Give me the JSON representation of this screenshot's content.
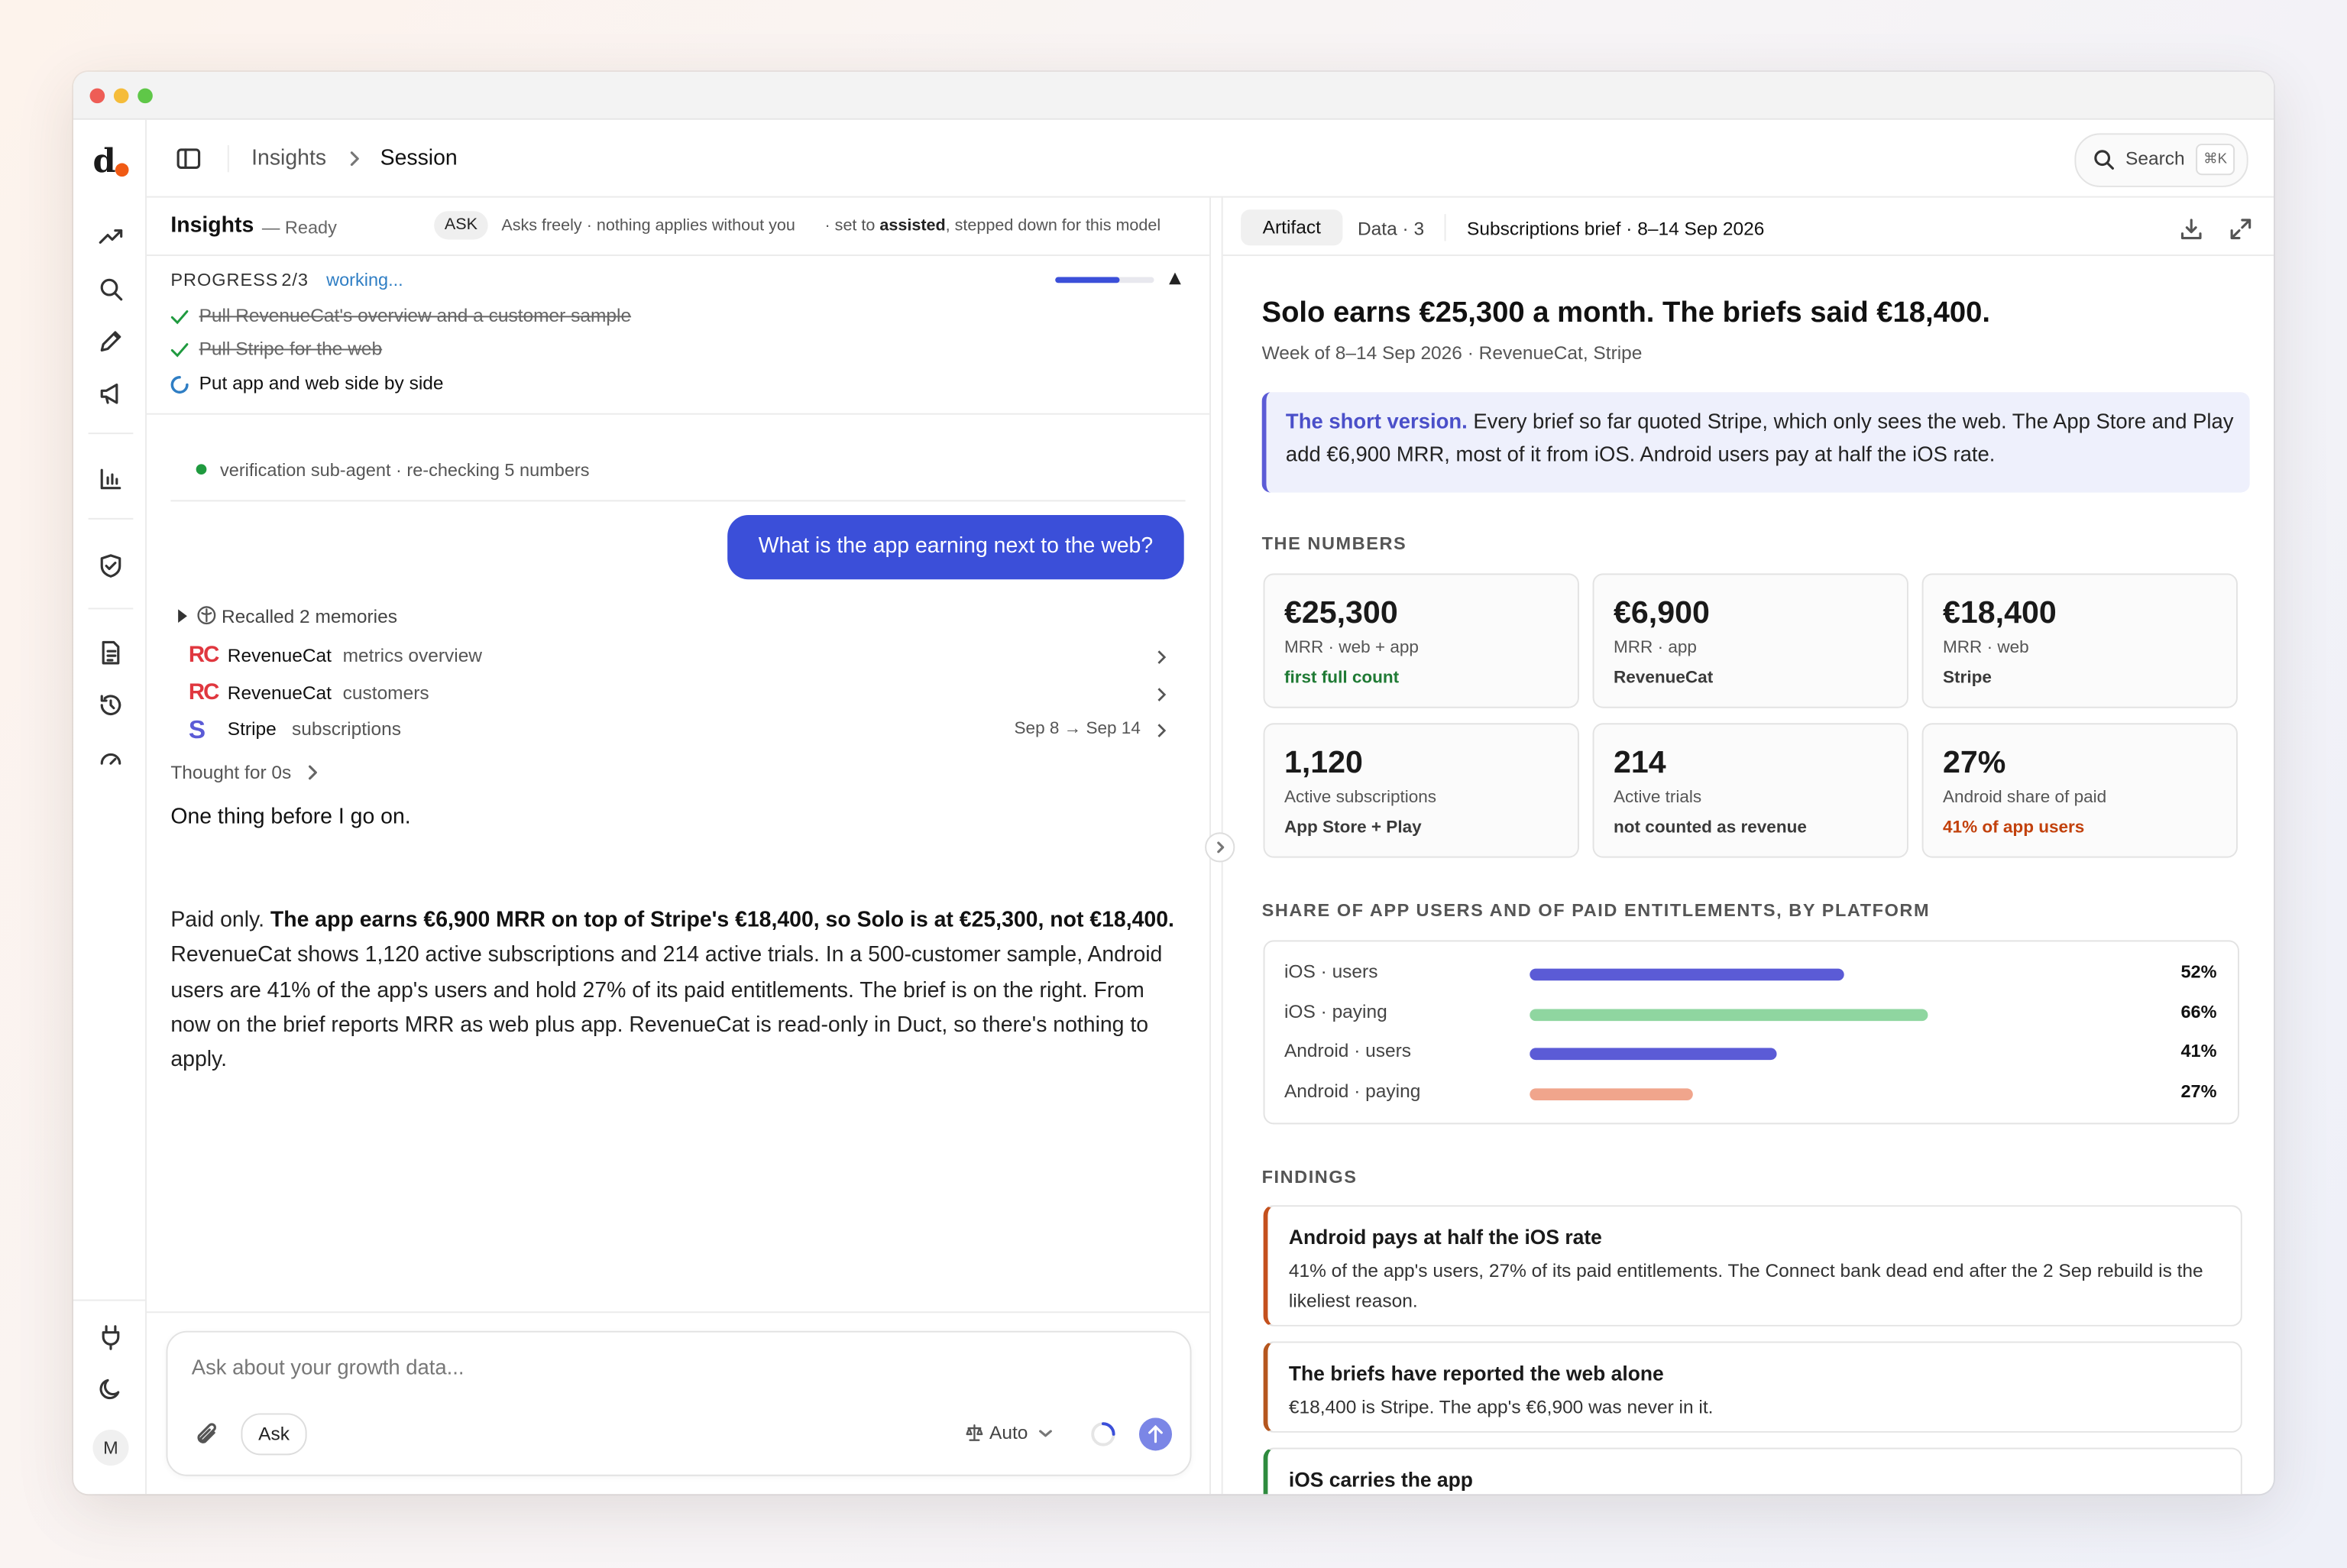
{
  "sidebar": {
    "brand": "d",
    "avatar": "M"
  },
  "header": {
    "breadcrumb": [
      "Insights",
      "Session"
    ],
    "search": "Search",
    "shortcut": "⌘K"
  },
  "chat": {
    "title": "Insights",
    "status": "— Ready",
    "mode_badge": "ASK",
    "mode_text": "Asks freely · nothing applies without you",
    "mode_note_pre": "· set to",
    "mode_note_bold": "assisted",
    "mode_note_post": ", stepped down for this model",
    "progress": {
      "label": "PROGRESS",
      "count": "2/3",
      "state": "working...",
      "steps": [
        {
          "text": "Pull RevenueCat's overview and a customer sample",
          "done": true
        },
        {
          "text": "Pull Stripe for the web",
          "done": true
        },
        {
          "text": "Put app and web side by side",
          "done": false
        }
      ]
    },
    "agent_status": "verification sub-agent · re-checking 5 numbers",
    "user_message": "What is the app earning next to the web?",
    "memories": {
      "label": "Recalled 2 memories",
      "items": [
        {
          "logo": "RC",
          "source": "RevenueCat",
          "detail": "metrics overview"
        },
        {
          "logo": "RC",
          "source": "RevenueCat",
          "detail": "customers"
        },
        {
          "logo": "S",
          "source": "Stripe",
          "detail": "subscriptions",
          "range": "Sep 8 → Sep 14"
        }
      ]
    },
    "thought": "Thought for 0s",
    "reply": {
      "first": "One thing before I go on.",
      "intro": "Paid only.",
      "bold": "The app earns €6,900 MRR on top of Stripe's €18,400, so Solo is at €25,300, not €18,400.",
      "rest": "RevenueCat shows 1,120 active subscriptions and 214 active trials. In a 500-customer sample, Android users are 41% of the app's users and hold 27% of its paid entitlements. The brief is on the right. From now on the brief reports MRR as web plus app. RevenueCat is read-only in Duct, so there's nothing to apply."
    },
    "composer": {
      "placeholder": "Ask about your growth data...",
      "mode": "Ask",
      "model": "Auto"
    }
  },
  "artifact": {
    "tabs": [
      "Artifact",
      "Data · 3"
    ],
    "doc_title": "Subscriptions brief · 8–14 Sep 2026",
    "title": "Solo earns €25,300 a month. The briefs said €18,400.",
    "subtitle": "Week of 8–14 Sep 2026 · RevenueCat, Stripe",
    "callout": {
      "lead": "The short version.",
      "text": "Every brief so far quoted Stripe, which only sees the web. The App Store and Play add €6,900 MRR, most of it from iOS. Android users pay at half the iOS rate."
    },
    "numbers_heading": "THE NUMBERS",
    "cards": [
      {
        "value": "€25,300",
        "label": "MRR · web + app",
        "note": "first full count",
        "note_color": "#1f7a34"
      },
      {
        "value": "€6,900",
        "label": "MRR · app",
        "note": "RevenueCat",
        "note_color": "#3a3a3a"
      },
      {
        "value": "€18,400",
        "label": "MRR · web",
        "note": "Stripe",
        "note_color": "#3a3a3a"
      },
      {
        "value": "1,120",
        "label": "Active subscriptions",
        "note": "App Store + Play",
        "note_color": "#3a3a3a"
      },
      {
        "value": "214",
        "label": "Active trials",
        "note": "not counted as revenue",
        "note_color": "#3a3a3a"
      },
      {
        "value": "27%",
        "label": "Android share of paid",
        "note": "41% of app users",
        "note_color": "#c2410c"
      }
    ],
    "share_chart": {
      "type": "bar",
      "title": "SHARE OF APP USERS AND OF PAID ENTITLEMENTS, BY PLATFORM",
      "categories": [
        "iOS · users",
        "iOS · paying",
        "Android · users",
        "Android · paying"
      ],
      "values": [
        52,
        66,
        41,
        27
      ],
      "value_labels": [
        "52%",
        "66%",
        "41%",
        "27%"
      ],
      "colors": [
        "#5b5bd6",
        "#8fd6a0",
        "#5b5bd6",
        "#f0a58c"
      ]
    },
    "findings_heading": "FINDINGS",
    "findings": [
      {
        "title": "Android pays at half the iOS rate",
        "text": "41% of the app's users, 27% of its paid entitlements. The Connect bank dead end after the 2 Sep rebuild is the likeliest reason.",
        "color": "#c4501d"
      },
      {
        "title": "The briefs have reported the web alone",
        "text": "€18,400 is Stripe. The app's €6,900 was never in it.",
        "color": "#b5561e"
      },
      {
        "title": "iOS carries the app",
        "text": "",
        "color": "#2e8b3e"
      }
    ]
  }
}
